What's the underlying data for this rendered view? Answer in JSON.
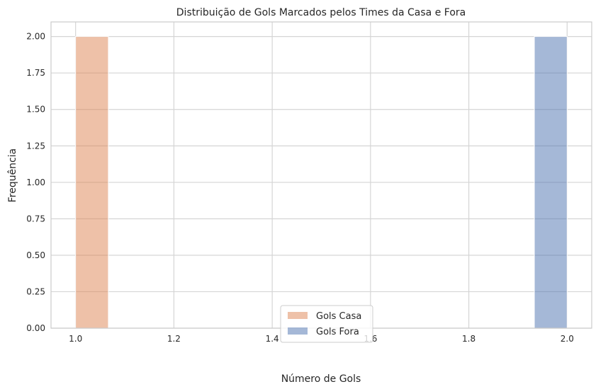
{
  "chart_data": {
    "type": "bar",
    "title": "Distribuição de Gols Marcados pelos Times da Casa e Fora",
    "xlabel": "Número de Gols",
    "ylabel": "Frequência",
    "xlim": [
      0.95,
      2.05
    ],
    "ylim": [
      0,
      2.1
    ],
    "xticks": [
      "1.0",
      "1.2",
      "1.4",
      "1.6",
      "1.8",
      "2.0"
    ],
    "yticks": [
      "0.00",
      "0.25",
      "0.50",
      "0.75",
      "1.00",
      "1.25",
      "1.50",
      "1.75",
      "2.00"
    ],
    "grid": true,
    "legend_position": "lower center",
    "series": [
      {
        "name": "Gols Casa",
        "color": "#dd8452",
        "opacity": 0.5,
        "bins": [
          {
            "x0": 1.0,
            "x1": 1.0667,
            "count": 2
          }
        ]
      },
      {
        "name": "Gols Fora",
        "color": "#4c72b0",
        "opacity": 0.5,
        "bins": [
          {
            "x0": 1.9333,
            "x1": 2.0,
            "count": 2
          }
        ]
      }
    ]
  }
}
